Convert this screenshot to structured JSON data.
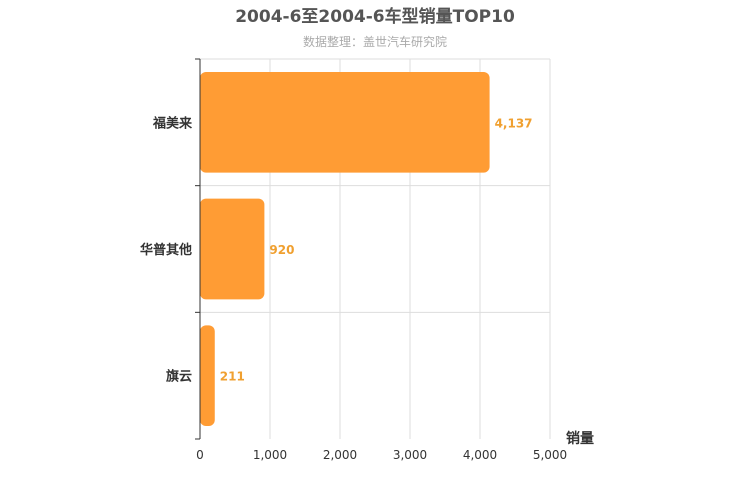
{
  "chart_data": {
    "type": "bar",
    "orientation": "horizontal",
    "title": "2004-6至2004-6车型销量TOP10",
    "subtitle": "数据整理：盖世汽车研究院",
    "xlabel": "销量",
    "ylabel": "",
    "categories": [
      "福美来",
      "华普其他",
      "旗云"
    ],
    "values": [
      4137,
      920,
      211
    ],
    "value_labels": [
      "4,137",
      "920",
      "211"
    ],
    "xlim": [
      0,
      5000
    ],
    "xticks": [
      0,
      1000,
      2000,
      3000,
      4000,
      5000
    ],
    "xtick_labels": [
      "0",
      "1,000",
      "2,000",
      "3,000",
      "4,000",
      "5,000"
    ],
    "grid": true,
    "legend": "none",
    "colors": {
      "bar": "#ff9c34",
      "data_label": "#f0a030",
      "grid": "#dddddd",
      "axis": "#333333"
    }
  }
}
